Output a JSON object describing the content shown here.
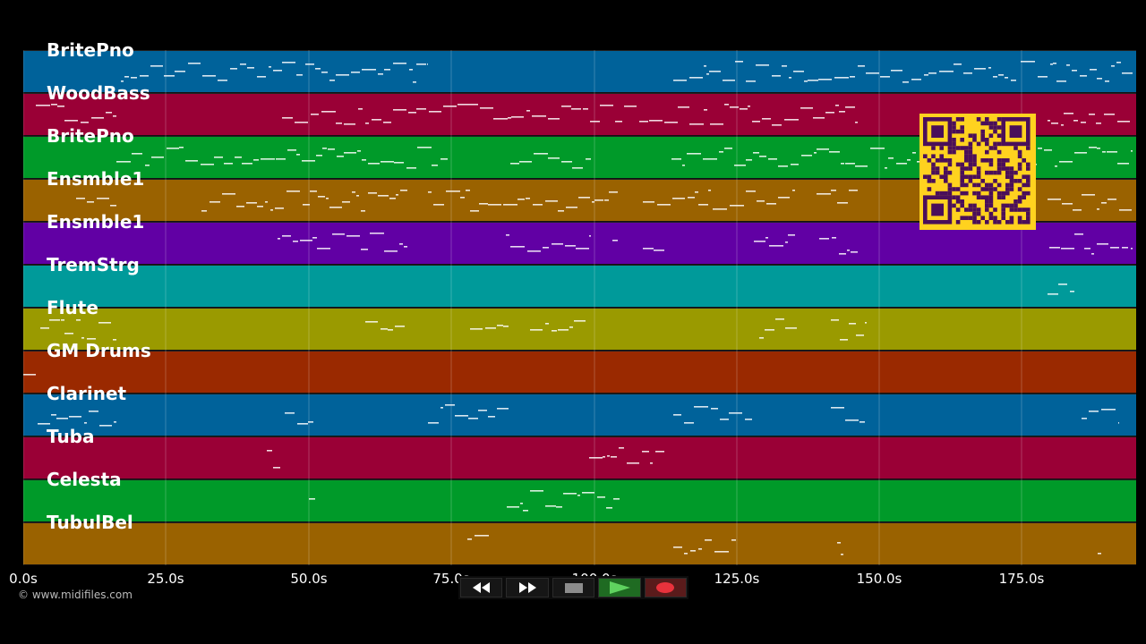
{
  "tracks": [
    {
      "name": "BritePno",
      "color": "#00629a"
    },
    {
      "name": "WoodBass",
      "color": "#9a0036"
    },
    {
      "name": "BritePno",
      "color": "#009a29"
    },
    {
      "name": "Ensmble1",
      "color": "#9a6200"
    },
    {
      "name": "Ensmble1",
      "color": "#6100a4"
    },
    {
      "name": "TremStrg",
      "color": "#009a9a"
    },
    {
      "name": "Flute",
      "color": "#9a9a00"
    },
    {
      "name": "GM Drums",
      "color": "#9a2900"
    },
    {
      "name": "Clarinet",
      "color": "#00629a"
    },
    {
      "name": "Tuba",
      "color": "#9a0036"
    },
    {
      "name": "Celesta",
      "color": "#009a29"
    },
    {
      "name": "TubulBel",
      "color": "#9a6200"
    }
  ],
  "time_axis": {
    "ticks": [
      "0.0s",
      "25.0s",
      "50.0s",
      "75.0s",
      "100.0s",
      "125.0s",
      "150.0s",
      "175.0s"
    ]
  },
  "copyright": "© www.midifiles.com",
  "transport": {
    "buttons": [
      {
        "name": "rewind-button",
        "icon": "rewind-icon"
      },
      {
        "name": "fast-forward-button",
        "icon": "fast-forward-icon"
      },
      {
        "name": "stop-button",
        "icon": "stop-icon"
      },
      {
        "name": "play-button",
        "icon": "play-icon"
      },
      {
        "name": "record-button",
        "icon": "record-icon"
      }
    ]
  },
  "qr_code": {
    "icon": "qr-code-icon",
    "color": "#ffd21f"
  }
}
